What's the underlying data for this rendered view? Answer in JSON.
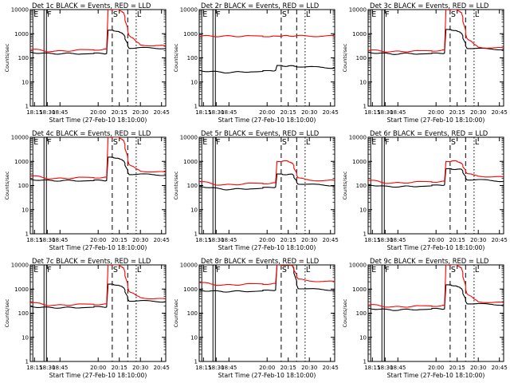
{
  "chart_data": {
    "type": "line",
    "layout": "3x3 grid of panels",
    "y_scale": "log",
    "ylim": [
      1,
      10000
    ],
    "ytick_labels": [
      "1",
      "10",
      "100",
      "1000",
      "10000"
    ],
    "ylabel": "Counts/sec",
    "xlim": [
      "18:10",
      "20:48"
    ],
    "xtick_labels": [
      "18:15",
      "18:30",
      "18:45",
      "20:00",
      "20:15",
      "20:30",
      "20:45"
    ],
    "xlabel": "Start Time (27-Feb-10 18:10:00)",
    "series_colors": {
      "events": "#000000",
      "lld": "#ff0000"
    },
    "markers": {
      "E": "18:13",
      "F": "18:29",
      "S": "20:10",
      "L": "20:27"
    },
    "panels": [
      {
        "title": "Det 1c BLACK = Events, RED = LLD",
        "x": [
          "18:10",
          "18:20",
          "18:30",
          "18:40",
          "18:50",
          "19:00",
          "19:10",
          "20:00",
          "20:06",
          "20:07",
          "20:10",
          "20:14",
          "20:18",
          "20:22",
          "20:30",
          "20:40",
          "20:48"
        ],
        "events": [
          170,
          160,
          150,
          150,
          150,
          150,
          150,
          150,
          150,
          1400,
          1400,
          1300,
          900,
          260,
          260,
          250,
          250
        ],
        "lld": [
          230,
          210,
          190,
          185,
          195,
          200,
          210,
          220,
          230,
          10000,
          10000,
          10000,
          8000,
          800,
          350,
          320,
          310
        ]
      },
      {
        "title": "Det 2r BLACK = Events, RED = LLD",
        "x": [
          "18:10",
          "18:20",
          "18:30",
          "18:40",
          "18:50",
          "19:00",
          "19:10",
          "20:00",
          "20:06",
          "20:07",
          "20:10",
          "20:14",
          "20:18",
          "20:22",
          "20:30",
          "20:40",
          "20:48"
        ],
        "events": [
          30,
          28,
          26,
          25,
          25,
          26,
          27,
          28,
          30,
          48,
          48,
          46,
          45,
          44,
          42,
          40,
          38
        ],
        "lld": [
          800,
          800,
          790,
          790,
          790,
          790,
          790,
          790,
          790,
          790,
          800,
          810,
          820,
          810,
          800,
          800,
          800
        ]
      },
      {
        "title": "Det 3c BLACK = Events, RED = LLD",
        "x": [
          "18:10",
          "18:20",
          "18:30",
          "18:40",
          "18:50",
          "19:00",
          "19:10",
          "20:00",
          "20:06",
          "20:07",
          "20:10",
          "20:14",
          "20:18",
          "20:22",
          "20:30",
          "20:40",
          "20:48"
        ],
        "events": [
          170,
          160,
          150,
          145,
          150,
          150,
          150,
          150,
          155,
          1500,
          1500,
          1400,
          1000,
          260,
          240,
          230,
          225
        ],
        "lld": [
          210,
          200,
          185,
          180,
          185,
          190,
          190,
          200,
          210,
          10000,
          10000,
          10000,
          8000,
          600,
          280,
          260,
          250
        ]
      },
      {
        "title": "Det 4c BLACK = Events, RED = LLD",
        "x": [
          "18:10",
          "18:20",
          "18:30",
          "18:40",
          "18:50",
          "19:00",
          "19:10",
          "20:00",
          "20:06",
          "20:07",
          "20:10",
          "20:14",
          "20:18",
          "20:22",
          "20:30",
          "20:40",
          "20:48"
        ],
        "events": [
          180,
          170,
          160,
          160,
          160,
          160,
          160,
          160,
          160,
          1500,
          1500,
          1400,
          1000,
          300,
          290,
          280,
          270
        ],
        "lld": [
          260,
          230,
          200,
          190,
          200,
          205,
          210,
          215,
          220,
          10000,
          10000,
          10000,
          8000,
          700,
          400,
          370,
          350
        ]
      },
      {
        "title": "Det 5r BLACK = Events, RED = LLD",
        "x": [
          "18:10",
          "18:20",
          "18:30",
          "18:40",
          "18:50",
          "19:00",
          "19:10",
          "20:00",
          "20:06",
          "20:07",
          "20:10",
          "20:14",
          "20:18",
          "20:22",
          "20:30",
          "20:40",
          "20:48"
        ],
        "events": [
          95,
          85,
          75,
          70,
          70,
          72,
          75,
          80,
          85,
          300,
          300,
          290,
          280,
          120,
          110,
          105,
          100
        ],
        "lld": [
          150,
          130,
          110,
          105,
          110,
          115,
          120,
          125,
          130,
          1000,
          1000,
          1000,
          900,
          200,
          170,
          160,
          160
        ]
      },
      {
        "title": "Det 6r BLACK = Events, RED = LLD",
        "x": [
          "18:10",
          "18:20",
          "18:30",
          "18:40",
          "18:50",
          "19:00",
          "19:10",
          "20:00",
          "20:06",
          "20:07",
          "20:10",
          "20:14",
          "20:18",
          "20:22",
          "20:30",
          "20:40",
          "20:48"
        ],
        "events": [
          110,
          100,
          90,
          90,
          90,
          92,
          95,
          100,
          105,
          500,
          500,
          480,
          450,
          180,
          170,
          160,
          150
        ],
        "lld": [
          170,
          150,
          130,
          125,
          130,
          135,
          140,
          145,
          150,
          1000,
          1000,
          1000,
          900,
          300,
          250,
          230,
          220
        ]
      },
      {
        "title": "Det 7c BLACK = Events, RED = LLD",
        "x": [
          "18:10",
          "18:20",
          "18:30",
          "18:40",
          "18:50",
          "19:00",
          "19:10",
          "20:00",
          "20:06",
          "20:07",
          "20:10",
          "20:14",
          "20:18",
          "20:22",
          "20:30",
          "20:40",
          "20:48"
        ],
        "events": [
          190,
          180,
          170,
          170,
          170,
          170,
          175,
          180,
          180,
          1600,
          1600,
          1500,
          1100,
          330,
          320,
          310,
          300
        ],
        "lld": [
          280,
          250,
          220,
          210,
          220,
          225,
          230,
          235,
          240,
          10000,
          10000,
          10000,
          8000,
          750,
          450,
          400,
          380
        ]
      },
      {
        "title": "Det 8r BLACK = Events, RED = LLD",
        "x": [
          "18:10",
          "18:20",
          "18:30",
          "18:40",
          "18:50",
          "19:00",
          "19:10",
          "20:00",
          "20:06",
          "20:07",
          "20:10",
          "20:14",
          "20:18",
          "20:22",
          "20:30",
          "20:40",
          "20:48"
        ],
        "events": [
          900,
          850,
          800,
          790,
          800,
          810,
          820,
          850,
          900,
          10000,
          10000,
          10000,
          9000,
          1100,
          1000,
          950,
          900
        ],
        "lld": [
          1900,
          1700,
          1500,
          1450,
          1500,
          1550,
          1600,
          1650,
          1700,
          10000,
          10000,
          10000,
          10000,
          2500,
          2200,
          2100,
          2000
        ]
      },
      {
        "title": "Det 9c BLACK = Events, RED = LLD",
        "x": [
          "18:10",
          "18:20",
          "18:30",
          "18:40",
          "18:50",
          "19:00",
          "19:10",
          "20:00",
          "20:06",
          "20:07",
          "20:10",
          "20:14",
          "20:18",
          "20:22",
          "20:30",
          "20:40",
          "20:48"
        ],
        "events": [
          160,
          150,
          140,
          135,
          140,
          140,
          145,
          150,
          150,
          1500,
          1500,
          1400,
          1000,
          260,
          240,
          230,
          225
        ],
        "lld": [
          230,
          210,
          190,
          180,
          185,
          190,
          195,
          200,
          210,
          10000,
          10000,
          10000,
          8000,
          600,
          300,
          280,
          270
        ]
      }
    ]
  }
}
